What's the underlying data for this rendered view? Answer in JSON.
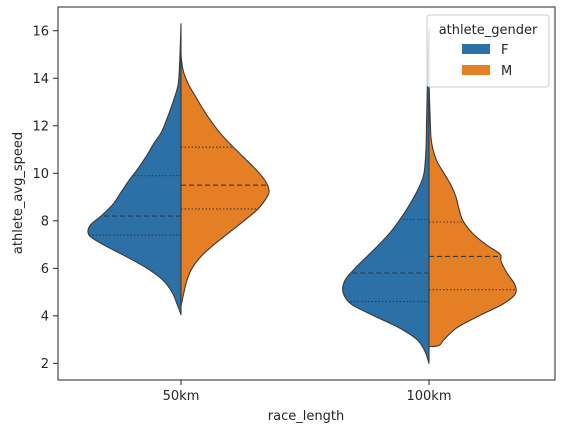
{
  "chart_data": {
    "type": "violin",
    "split": true,
    "xlabel": "race_length",
    "ylabel": "athlete_avg_speed",
    "categories": [
      "50km",
      "100km"
    ],
    "yticks": [
      2,
      4,
      6,
      8,
      10,
      12,
      14,
      16
    ],
    "ylim": [
      1.3,
      17.0
    ],
    "grid": false,
    "legend": {
      "title": "athlete_gender",
      "placement": "top-right",
      "entries": [
        "F",
        "M"
      ]
    },
    "colors": {
      "F": "#2c70a8",
      "M": "#e57f25",
      "edge": "#3a3a3a"
    },
    "inner": "quartile",
    "series": [
      {
        "name": "F",
        "violins": [
          {
            "category": "50km",
            "min": 4.05,
            "max": 16.3,
            "quartiles": [
              7.4,
              8.2,
              9.9
            ],
            "profile": [
              [
                4.05,
                0
              ],
              [
                4.5,
                0.04
              ],
              [
                5.0,
                0.09
              ],
              [
                5.5,
                0.18
              ],
              [
                6.0,
                0.34
              ],
              [
                6.5,
                0.55
              ],
              [
                7.0,
                0.78
              ],
              [
                7.4,
                0.92
              ],
              [
                7.8,
                0.91
              ],
              [
                8.2,
                0.8
              ],
              [
                8.7,
                0.68
              ],
              [
                9.2,
                0.6
              ],
              [
                9.7,
                0.52
              ],
              [
                10.2,
                0.43
              ],
              [
                10.7,
                0.35
              ],
              [
                11.2,
                0.28
              ],
              [
                11.7,
                0.2
              ],
              [
                12.3,
                0.14
              ],
              [
                13.0,
                0.08
              ],
              [
                13.7,
                0.03
              ],
              [
                14.5,
                0.015
              ],
              [
                15.5,
                0.006
              ],
              [
                16.3,
                0
              ]
            ]
          },
          {
            "category": "100km",
            "min": 2.0,
            "max": 16.1,
            "quartiles": [
              4.6,
              5.8,
              8.05
            ],
            "profile": [
              [
                2.0,
                0
              ],
              [
                2.5,
                0.04
              ],
              [
                3.0,
                0.12
              ],
              [
                3.5,
                0.3
              ],
              [
                4.0,
                0.55
              ],
              [
                4.5,
                0.78
              ],
              [
                5.0,
                0.86
              ],
              [
                5.5,
                0.84
              ],
              [
                6.0,
                0.74
              ],
              [
                6.5,
                0.62
              ],
              [
                7.0,
                0.5
              ],
              [
                7.5,
                0.39
              ],
              [
                8.0,
                0.3
              ],
              [
                8.5,
                0.22
              ],
              [
                9.0,
                0.15
              ],
              [
                9.5,
                0.09
              ],
              [
                10.0,
                0.05
              ],
              [
                11.0,
                0.03
              ],
              [
                12.0,
                0.025
              ],
              [
                13.0,
                0.02
              ],
              [
                14.0,
                0.015
              ],
              [
                15.0,
                0.01
              ],
              [
                16.1,
                0
              ]
            ]
          }
        ]
      },
      {
        "name": "M",
        "violins": [
          {
            "category": "50km",
            "min": 4.4,
            "max": 15.0,
            "quartiles": [
              8.5,
              9.5,
              11.1
            ],
            "profile": [
              [
                4.4,
                0
              ],
              [
                5.0,
                0.03
              ],
              [
                5.5,
                0.06
              ],
              [
                6.0,
                0.11
              ],
              [
                6.5,
                0.2
              ],
              [
                7.0,
                0.33
              ],
              [
                7.5,
                0.48
              ],
              [
                8.0,
                0.63
              ],
              [
                8.5,
                0.77
              ],
              [
                9.0,
                0.86
              ],
              [
                9.3,
                0.88
              ],
              [
                9.7,
                0.84
              ],
              [
                10.2,
                0.74
              ],
              [
                10.7,
                0.62
              ],
              [
                11.2,
                0.5
              ],
              [
                11.7,
                0.39
              ],
              [
                12.2,
                0.3
              ],
              [
                12.7,
                0.22
              ],
              [
                13.2,
                0.15
              ],
              [
                13.7,
                0.08
              ],
              [
                14.2,
                0.03
              ],
              [
                14.6,
                0.01
              ],
              [
                15.0,
                0
              ]
            ]
          },
          {
            "category": "100km",
            "min": 2.7,
            "max": 13.8,
            "quartiles": [
              5.1,
              6.5,
              7.95
            ],
            "profile": [
              [
                2.7,
                0
              ],
              [
                2.75,
                0.1
              ],
              [
                3.0,
                0.15
              ],
              [
                3.5,
                0.28
              ],
              [
                4.0,
                0.5
              ],
              [
                4.5,
                0.74
              ],
              [
                4.9,
                0.86
              ],
              [
                5.3,
                0.86
              ],
              [
                5.8,
                0.78
              ],
              [
                6.3,
                0.72
              ],
              [
                6.6,
                0.71
              ],
              [
                7.0,
                0.57
              ],
              [
                7.5,
                0.43
              ],
              [
                8.0,
                0.34
              ],
              [
                8.5,
                0.3
              ],
              [
                9.0,
                0.27
              ],
              [
                9.5,
                0.22
              ],
              [
                10.0,
                0.15
              ],
              [
                10.5,
                0.08
              ],
              [
                11.0,
                0.04
              ],
              [
                11.5,
                0.02
              ],
              [
                12.5,
                0.01
              ],
              [
                13.8,
                0
              ]
            ]
          }
        ]
      }
    ]
  }
}
